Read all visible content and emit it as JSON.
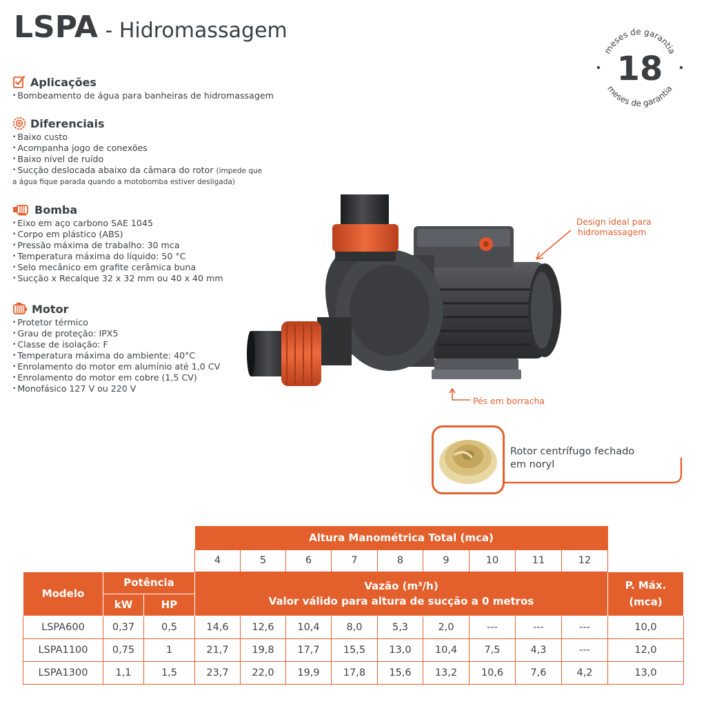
{
  "header": {
    "model": "LSPA",
    "subtitle": "- Hidromassagem"
  },
  "warranty": {
    "number": "18",
    "ring_text": "meses de garantia"
  },
  "sections": {
    "aplicacoes": {
      "title": "Aplicações",
      "items": [
        "Bombeamento de água para banheiras de hidromassagem"
      ]
    },
    "diferenciais": {
      "title": "Diferenciais",
      "items": [
        "Baixo custo",
        "Acompanha jogo de conexões",
        "Baixo nível de ruído",
        "Sucção deslocada abaixo da câmara do rotor"
      ],
      "note_1": "(impede que",
      "note_2": "a água fique parada quando a motobomba estiver desligada)"
    },
    "bomba": {
      "title": "Bomba",
      "items": [
        "Eixo em aço carbono SAE 1045",
        "Corpo em plástico (ABS)",
        "Pressão máxima de trabalho: 30 mca",
        "Temperatura máxima do líquido: 50 °C",
        "Selo mecânico em grafite cerâmica buna",
        "Sucção x Recalque 32 x 32 mm ou 40 x 40 mm"
      ]
    },
    "motor": {
      "title": "Motor",
      "items": [
        "Protetor térmico",
        "Grau de proteção: IPX5",
        "Classe de isolação: F",
        "Temperatura máxima do ambiente: 40°C",
        "Enrolamento do motor em alumínio até 1,0 CV",
        "Enrolamento do motor em cobre (1,5 CV)",
        "Monofásico 127 V ou 220 V"
      ]
    }
  },
  "callouts": {
    "design_1": "Design ideal para",
    "design_2": "hidromassagem",
    "feet": "Pés em borracha",
    "rotor_1": "Rotor centrífugo fechado",
    "rotor_2": "em noryl"
  },
  "table": {
    "altura_header": "Altura Manométrica Total (mca)",
    "heights": [
      "4",
      "5",
      "6",
      "7",
      "8",
      "9",
      "10",
      "11",
      "12"
    ],
    "modelo_header": "Modelo",
    "potencia_header": "Potência",
    "kw_header": "kW",
    "hp_header": "HP",
    "vazao_header": "Vazão (m³/h)",
    "vazao_sub": "Valor válido para altura de sucção a 0 metros",
    "pmax_header_1": "P. Máx.",
    "pmax_header_2": "(mca)",
    "rows": [
      {
        "model": "LSPA600",
        "kw": "0,37",
        "hp": "0,5",
        "flows": [
          "14,6",
          "12,6",
          "10,4",
          "8,0",
          "5,3",
          "2,0",
          "---",
          "---",
          "---"
        ],
        "pmax": "10,0"
      },
      {
        "model": "LSPA1100",
        "kw": "0,75",
        "hp": "1",
        "flows": [
          "21,7",
          "19,8",
          "17,7",
          "15,5",
          "13,0",
          "10,4",
          "7,5",
          "4,3",
          "---"
        ],
        "pmax": "12,0"
      },
      {
        "model": "LSPA1300",
        "kw": "1,1",
        "hp": "1,5",
        "flows": [
          "23,7",
          "22,0",
          "19,9",
          "17,8",
          "15,6",
          "13,2",
          "10,6",
          "7,6",
          "4,2"
        ],
        "pmax": "13,0"
      }
    ]
  },
  "colors": {
    "accent": "#e35f2c",
    "text": "#3d3f42",
    "pump_body": "#3f4144",
    "union_nut": "#e2552a"
  }
}
